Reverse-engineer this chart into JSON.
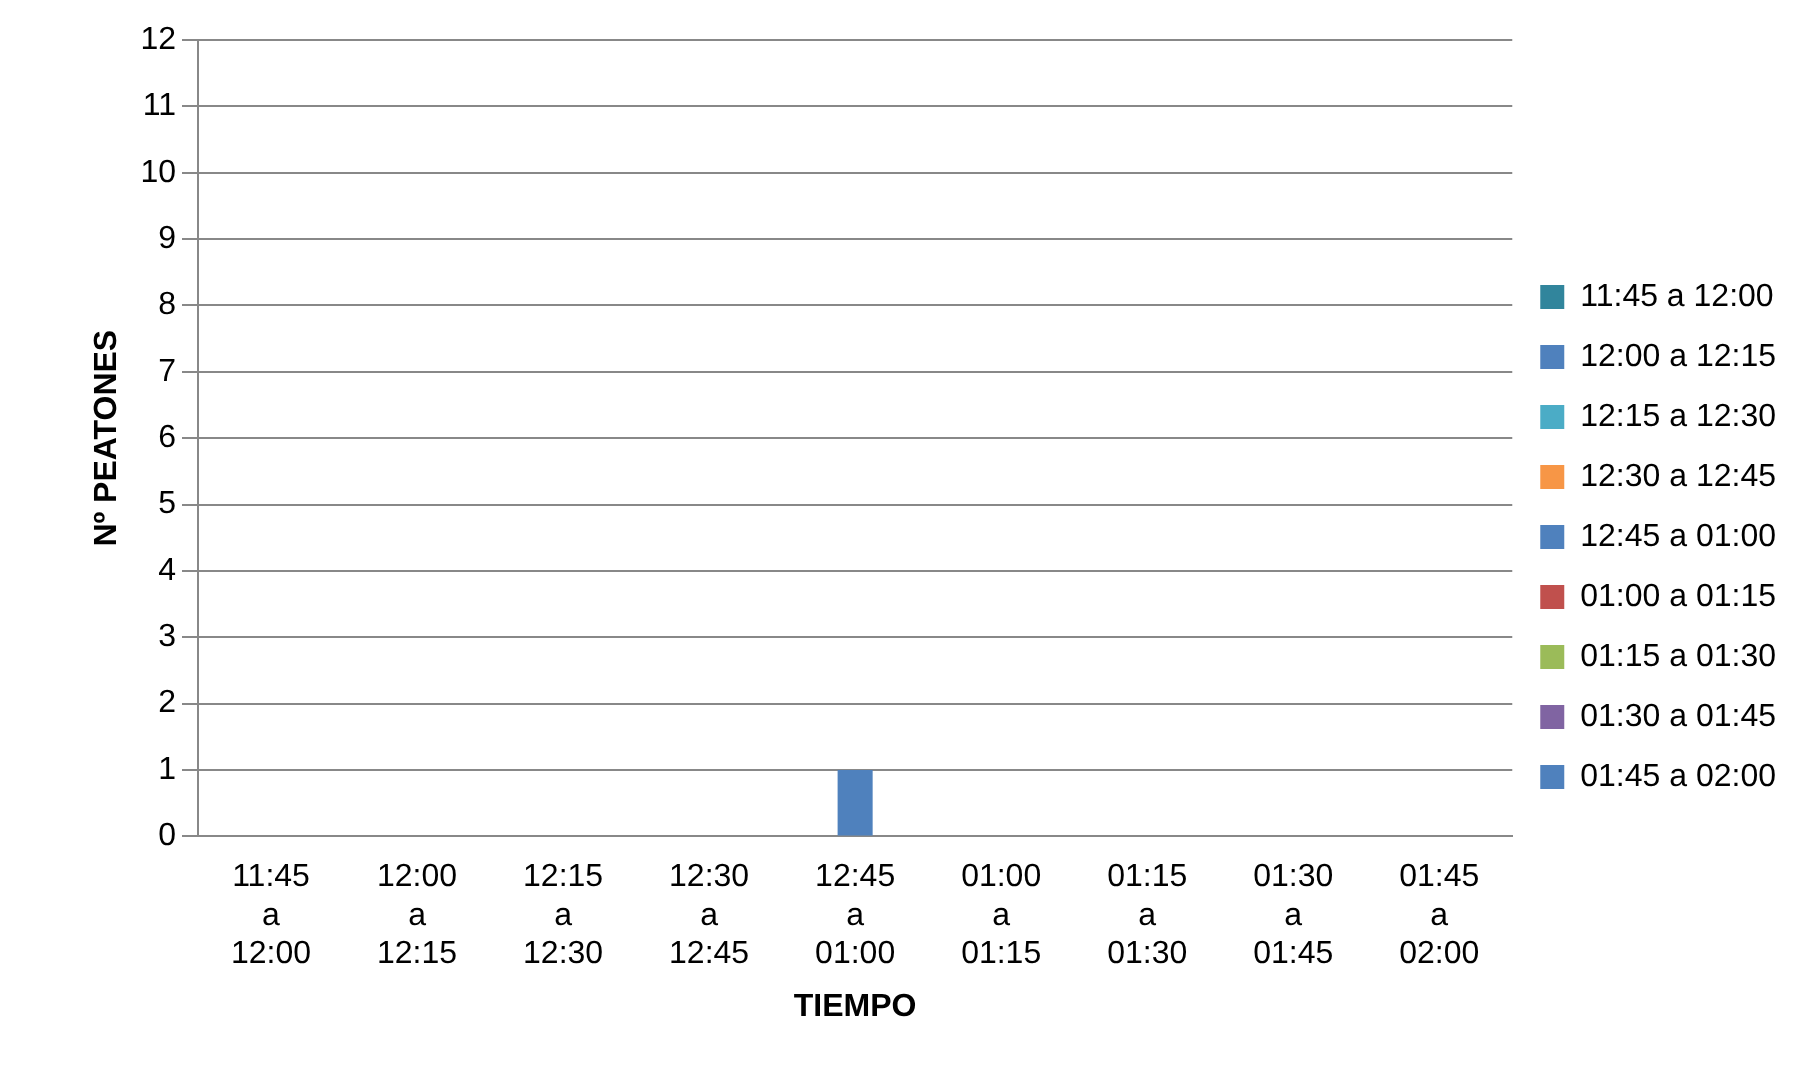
{
  "chart_data": {
    "type": "bar",
    "xlabel": "TIEMPO",
    "ylabel": "Nº PEATONES",
    "categories": [
      "11:45 a 12:00",
      "12:00 a 12:15",
      "12:15 a 12:30",
      "12:30 a 12:45",
      "12:45 a 01:00",
      "01:00 a 01:15",
      "01:15 a 01:30",
      "01:30 a 01:45",
      "01:45 a 02:00"
    ],
    "series": [
      {
        "name": "11:45 a 12:00",
        "color": "#31859c",
        "values": [
          0,
          null,
          null,
          null,
          null,
          null,
          null,
          null,
          null
        ]
      },
      {
        "name": "12:00 a 12:15",
        "color": "#4f81bd",
        "values": [
          null,
          0,
          null,
          null,
          null,
          null,
          null,
          null,
          null
        ]
      },
      {
        "name": "12:15 a 12:30",
        "color": "#4bacc6",
        "values": [
          null,
          null,
          0,
          null,
          null,
          null,
          null,
          null,
          null
        ]
      },
      {
        "name": "12:30 a 12:45",
        "color": "#f79646",
        "values": [
          null,
          null,
          null,
          0,
          null,
          null,
          null,
          null,
          null
        ]
      },
      {
        "name": "12:45 a 01:00",
        "color": "#4f81bd",
        "values": [
          null,
          null,
          null,
          null,
          1,
          null,
          null,
          null,
          null
        ]
      },
      {
        "name": "01:00 a 01:15",
        "color": "#c0504d",
        "values": [
          null,
          null,
          null,
          null,
          null,
          0,
          null,
          null,
          null
        ]
      },
      {
        "name": "01:15 a 01:30",
        "color": "#9bbb59",
        "values": [
          null,
          null,
          null,
          null,
          null,
          null,
          0,
          null,
          null
        ]
      },
      {
        "name": "01:30 a 01:45",
        "color": "#8064a2",
        "values": [
          null,
          null,
          null,
          null,
          null,
          null,
          null,
          0,
          null
        ]
      },
      {
        "name": "01:45 a 02:00",
        "color": "#4f81bd",
        "values": [
          null,
          null,
          null,
          null,
          null,
          null,
          null,
          null,
          0
        ]
      }
    ],
    "ylim": [
      0,
      12
    ],
    "yticks": [
      0,
      1,
      2,
      3,
      4,
      5,
      6,
      7,
      8,
      9,
      10,
      11,
      12
    ],
    "grid": "y",
    "legend": "right"
  }
}
